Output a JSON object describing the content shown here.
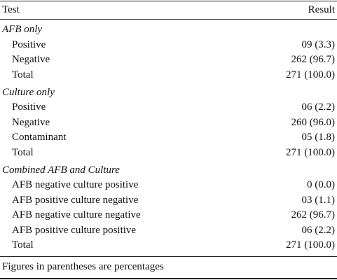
{
  "table": {
    "header": [
      "Test",
      "Result"
    ],
    "sections": [
      {
        "title": "AFB only",
        "rows": [
          [
            "Positive",
            "09 (3.3)"
          ],
          [
            "Negative",
            "262 (96.7)"
          ],
          [
            "Total",
            "271 (100.0)"
          ]
        ]
      },
      {
        "title": "Culture only",
        "rows": [
          [
            "Positive",
            "06 (2.2)"
          ],
          [
            "Negative",
            "260 (96.0)"
          ],
          [
            "Contaminant",
            "05 (1.8)"
          ],
          [
            "Total",
            "271 (100.0)"
          ]
        ]
      },
      {
        "title": "Combined AFB and Culture",
        "rows": [
          [
            "AFB negative culture positive",
            "0 (0.0)"
          ],
          [
            "AFB positive culture negative",
            "03 (1.1)"
          ],
          [
            "AFB negative culture negative",
            "262 (96.7)"
          ],
          [
            "AFB positive culture positive",
            "06 (2.2)"
          ],
          [
            "Total",
            "271 (100.0)"
          ]
        ]
      }
    ],
    "footnote": "Figures in parentheses are percentages"
  }
}
